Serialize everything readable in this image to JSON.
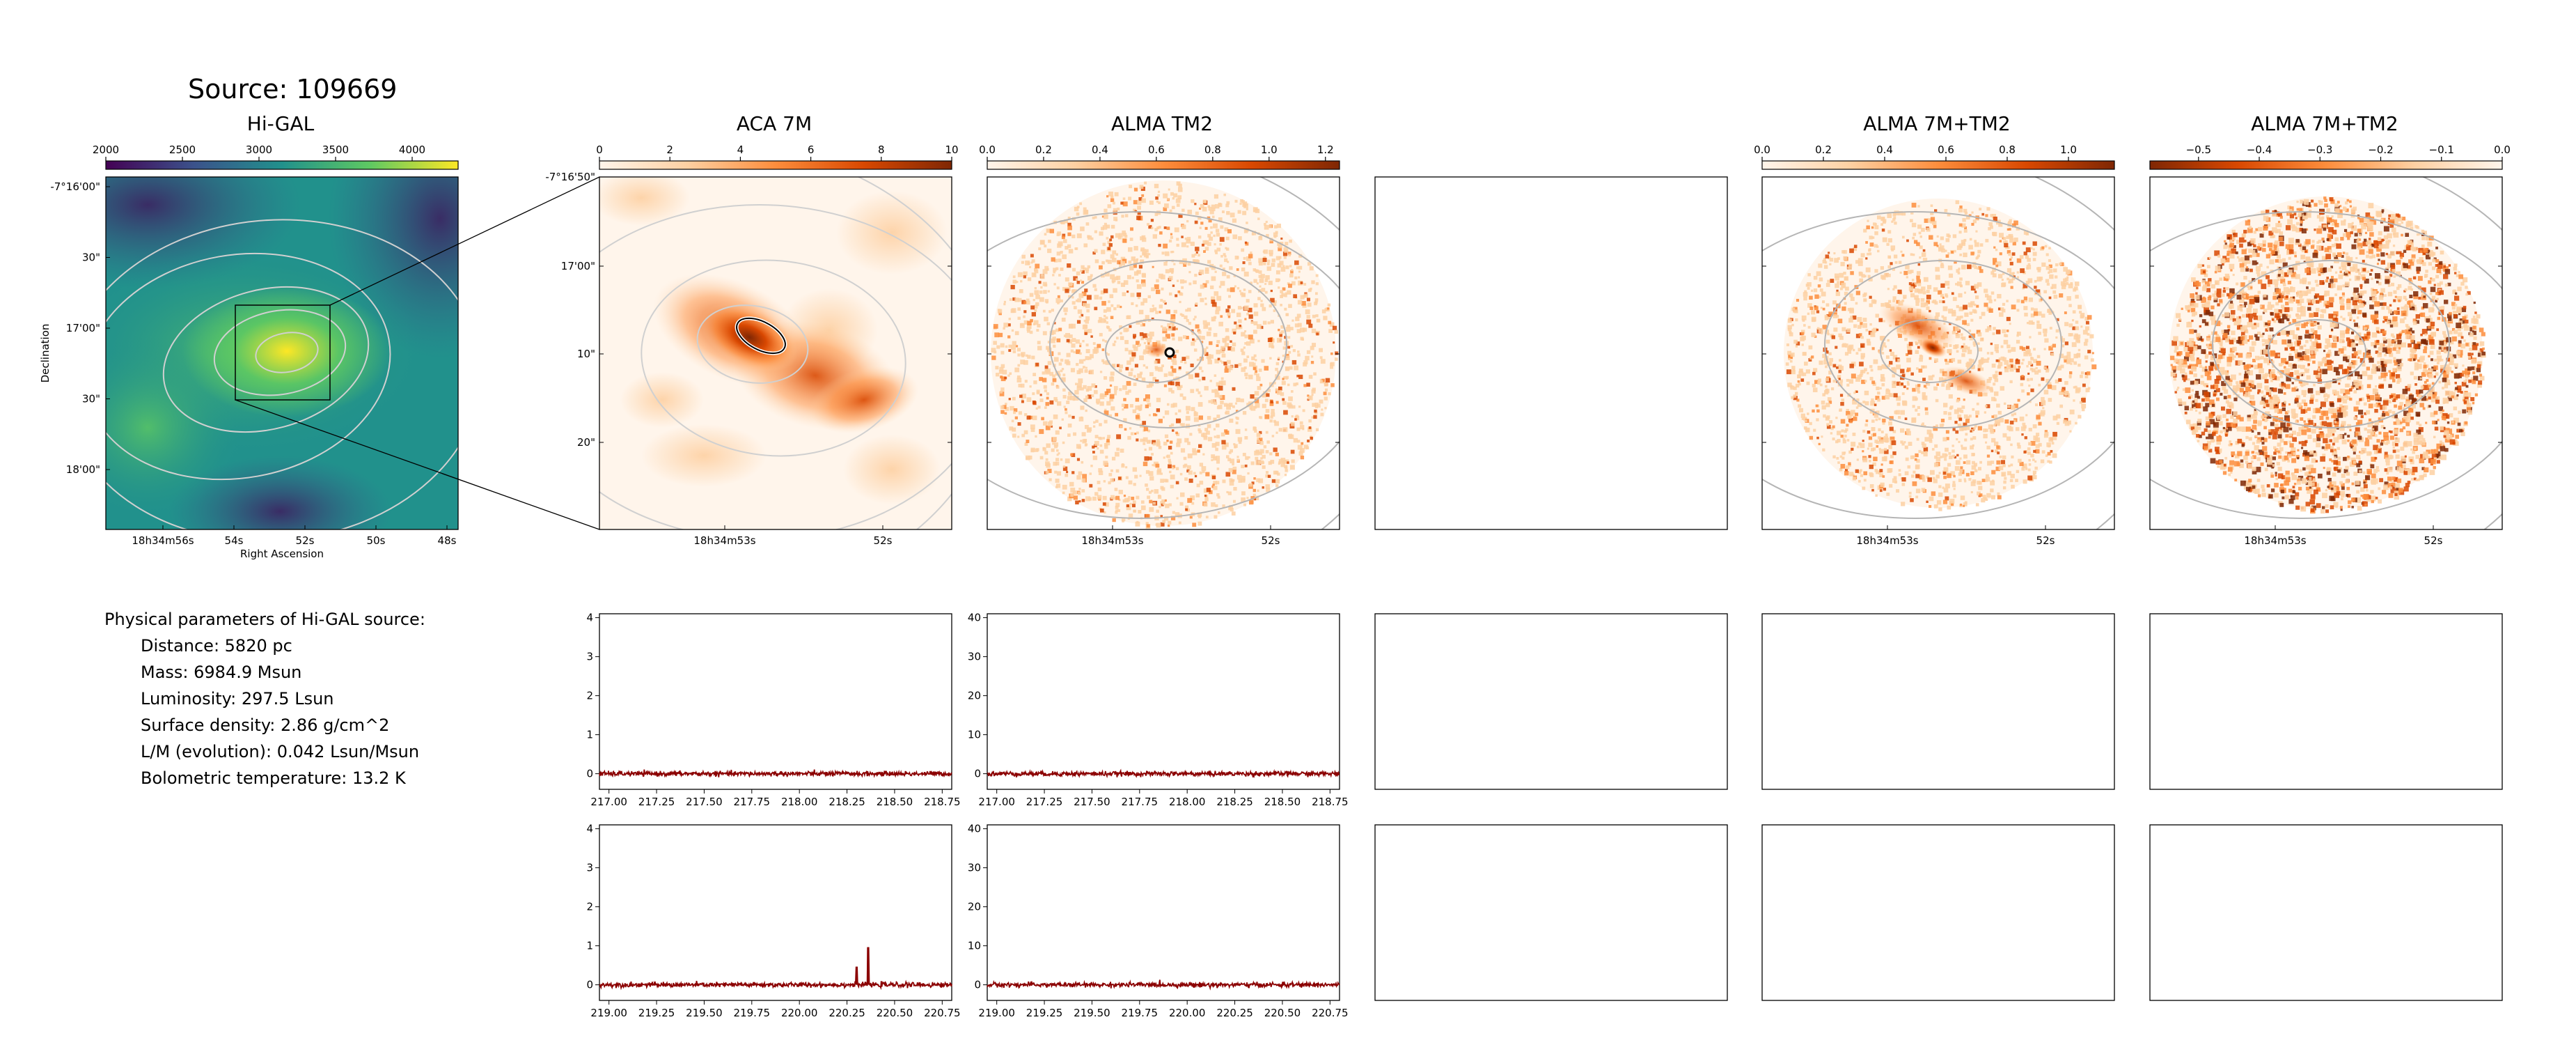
{
  "source_title": "Source: 109669",
  "physical": {
    "header": "Physical parameters of Hi-GAL source:",
    "rows": [
      "Distance: 5820 pc",
      "Mass: 6984.9 Msun",
      "Luminosity: 297.5 Lsun",
      "Surface density: 2.86 g/cm^2",
      "L/M (evolution): 0.042 Lsun/Msun",
      "Bolometric temperature: 13.2 K"
    ]
  },
  "colors": {
    "viridis": [
      "#440154",
      "#3b528b",
      "#21918c",
      "#5ec962",
      "#fde725"
    ],
    "heat": [
      "#fff5eb",
      "#fdd0a2",
      "#fd8d3c",
      "#d94801",
      "#7f2704"
    ],
    "heat_rev": [
      "#7f2704",
      "#d94801",
      "#fd8d3c",
      "#fdd0a2",
      "#fff5eb"
    ],
    "spectrum_line": "#8b0000",
    "contour_light": "#d0d0d0",
    "contour_dark": "#b5b5b5"
  },
  "chart_data": [
    {
      "id": "higal",
      "type": "heatmap",
      "title": "Hi-GAL",
      "colorbar": {
        "ticks": [
          "2000",
          "2500",
          "3000",
          "3500",
          "4000"
        ],
        "range": [
          2000,
          4300
        ]
      },
      "y_ticks": [
        "-7°16'00\"",
        "30\"",
        "17'00\"",
        "30\"",
        "18'00\""
      ],
      "x_ticks": [
        "18h34m56s",
        "54s",
        "52s",
        "50s",
        "48s"
      ],
      "xlabel": "Right Ascension",
      "ylabel": "Declination"
    },
    {
      "id": "aca7m",
      "type": "heatmap",
      "title": "ACA 7M",
      "colorbar": {
        "ticks": [
          "0",
          "2",
          "4",
          "6",
          "8",
          "10"
        ],
        "range": [
          0,
          10
        ]
      },
      "y_ticks": [
        "-7°16'50\"",
        "17'00\"",
        "10\"",
        "20\""
      ],
      "x_ticks": [
        "18h34m53s",
        "52s"
      ]
    },
    {
      "id": "tm2",
      "type": "heatmap",
      "title": "ALMA TM2",
      "colorbar": {
        "ticks": [
          "0.0",
          "0.2",
          "0.4",
          "0.6",
          "0.8",
          "1.0",
          "1.2"
        ],
        "range": [
          0,
          1.25
        ]
      },
      "x_ticks": [
        "18h34m53s",
        "52s"
      ]
    },
    {
      "id": "combo",
      "type": "heatmap",
      "title": "ALMA 7M+TM2",
      "colorbar": {
        "ticks": [
          "0.0",
          "0.2",
          "0.4",
          "0.6",
          "0.8",
          "1.0"
        ],
        "range": [
          0,
          1.15
        ]
      },
      "x_ticks": [
        "18h34m53s",
        "52s"
      ]
    },
    {
      "id": "combo_neg",
      "type": "heatmap",
      "title": "ALMA 7M+TM2",
      "colorbar": {
        "ticks": [
          "−0.5",
          "−0.4",
          "−0.3",
          "−0.2",
          "−0.1",
          "0.0"
        ],
        "range": [
          -0.58,
          0
        ]
      },
      "x_ticks": [
        "18h34m53s",
        "52s"
      ]
    },
    {
      "id": "spec_aca_1",
      "type": "line",
      "x_range": [
        216.95,
        218.8
      ],
      "x_ticks": [
        217.0,
        217.25,
        217.5,
        217.75,
        218.0,
        218.25,
        218.5,
        218.75
      ],
      "x_tick_labels": [
        "217.00",
        "217.25",
        "217.50",
        "217.75",
        "218.00",
        "218.25",
        "218.50",
        "218.75"
      ],
      "y_range": [
        -0.4,
        4.1
      ],
      "y_ticks": [
        0,
        1,
        2,
        3,
        4
      ],
      "y_tick_labels": [
        "0",
        "1",
        "2",
        "3",
        "4"
      ],
      "noise": 0.05,
      "peaks": []
    },
    {
      "id": "spec_tm2_1",
      "type": "line",
      "x_range": [
        216.95,
        218.8
      ],
      "x_ticks": [
        217.0,
        217.25,
        217.5,
        217.75,
        218.0,
        218.25,
        218.5,
        218.75
      ],
      "x_tick_labels": [
        "217.00",
        "217.25",
        "217.50",
        "217.75",
        "218.00",
        "218.25",
        "218.50",
        "218.75"
      ],
      "y_range": [
        -4,
        41
      ],
      "y_ticks": [
        0,
        10,
        20,
        30,
        40
      ],
      "y_tick_labels": [
        "0",
        "10",
        "20",
        "30",
        "40"
      ],
      "noise": 0.5,
      "peaks": []
    },
    {
      "id": "spec_aca_2",
      "type": "line",
      "x_range": [
        218.95,
        220.8
      ],
      "x_ticks": [
        219.0,
        219.25,
        219.5,
        219.75,
        220.0,
        220.25,
        220.5,
        220.75
      ],
      "x_tick_labels": [
        "219.00",
        "219.25",
        "219.50",
        "219.75",
        "220.00",
        "220.25",
        "220.50",
        "220.75"
      ],
      "y_range": [
        -0.4,
        4.1
      ],
      "y_ticks": [
        0,
        1,
        2,
        3,
        4
      ],
      "y_tick_labels": [
        "0",
        "1",
        "2",
        "3",
        "4"
      ],
      "noise": 0.05,
      "peaks": [
        {
          "x": 220.3,
          "y": 0.45
        },
        {
          "x": 220.36,
          "y": 0.95
        }
      ]
    },
    {
      "id": "spec_tm2_2",
      "type": "line",
      "x_range": [
        218.95,
        220.8
      ],
      "x_ticks": [
        219.0,
        219.25,
        219.5,
        219.75,
        220.0,
        220.25,
        220.5,
        220.75
      ],
      "x_tick_labels": [
        "219.00",
        "219.25",
        "219.50",
        "219.75",
        "220.00",
        "220.25",
        "220.50",
        "220.75"
      ],
      "y_range": [
        -4,
        41
      ],
      "y_ticks": [
        0,
        10,
        20,
        30,
        40
      ],
      "y_tick_labels": [
        "0",
        "10",
        "20",
        "30",
        "40"
      ],
      "noise": 0.5,
      "peaks": []
    }
  ]
}
